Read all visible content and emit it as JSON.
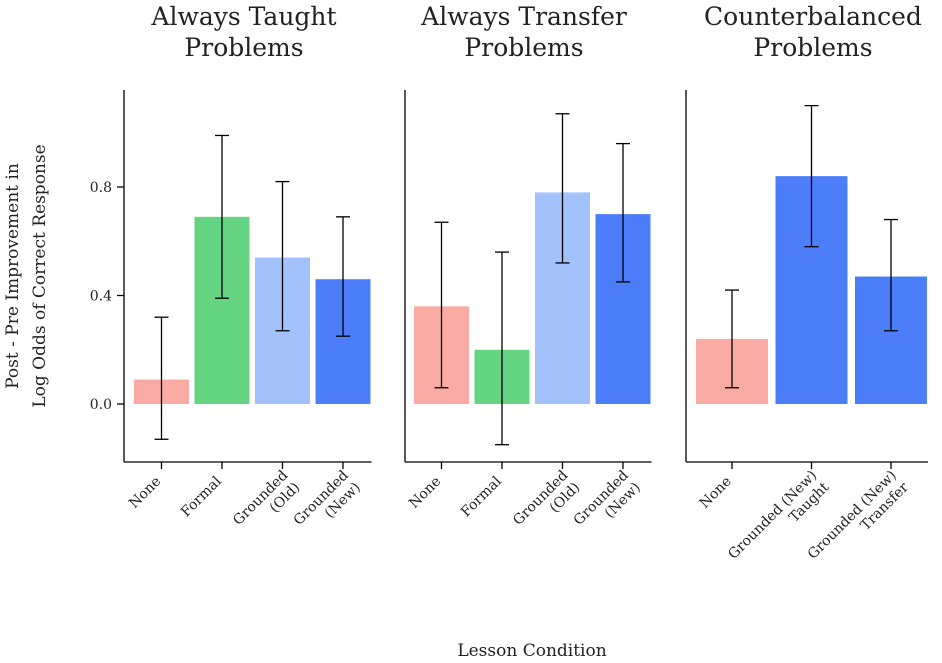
{
  "chart_data": {
    "type": "bar",
    "ylabel": [
      "Post - Pre Improvement in",
      "Log Odds of Correct Response"
    ],
    "xlabel": "Lesson Condition",
    "ylim": [
      -0.22,
      1.15
    ],
    "yticks": [
      0.0,
      0.4,
      0.8
    ],
    "ytick_labels": [
      "0.0",
      "0.4",
      "0.8"
    ],
    "colors": {
      "none": "#f8aaa3",
      "formal": "#65d584",
      "grounded_old": "#a3c2fb",
      "grounded_new": "#4b7ef8"
    },
    "panels": [
      {
        "title": [
          "Always Taught",
          "Problems"
        ],
        "bars": [
          {
            "label": [
              "None"
            ],
            "value": 0.09,
            "ci": [
              -0.13,
              0.32
            ],
            "color": "#f8aaa3"
          },
          {
            "label": [
              "Formal"
            ],
            "value": 0.69,
            "ci": [
              0.39,
              0.99
            ],
            "color": "#65d584"
          },
          {
            "label": [
              "Grounded",
              "(Old)"
            ],
            "value": 0.54,
            "ci": [
              0.27,
              0.82
            ],
            "color": "#a3c2fb"
          },
          {
            "label": [
              "Grounded",
              "(New)"
            ],
            "value": 0.46,
            "ci": [
              0.25,
              0.69
            ],
            "color": "#4b7ef8"
          }
        ]
      },
      {
        "title": [
          "Always Transfer",
          "Problems"
        ],
        "bars": [
          {
            "label": [
              "None"
            ],
            "value": 0.36,
            "ci": [
              0.06,
              0.67
            ],
            "color": "#f8aaa3"
          },
          {
            "label": [
              "Formal"
            ],
            "value": 0.2,
            "ci": [
              -0.15,
              0.56
            ],
            "color": "#65d584"
          },
          {
            "label": [
              "Grounded",
              "(Old)"
            ],
            "value": 0.78,
            "ci": [
              0.52,
              1.07
            ],
            "color": "#a3c2fb"
          },
          {
            "label": [
              "Grounded",
              "(New)"
            ],
            "value": 0.7,
            "ci": [
              0.45,
              0.96
            ],
            "color": "#4b7ef8"
          }
        ]
      },
      {
        "title": [
          "Counterbalanced",
          "Problems"
        ],
        "bars": [
          {
            "label": [
              "None"
            ],
            "value": 0.24,
            "ci": [
              0.06,
              0.42
            ],
            "color": "#f8aaa3"
          },
          {
            "label": [
              "Grounded (New)",
              "Taught"
            ],
            "value": 0.84,
            "ci": [
              0.58,
              1.1
            ],
            "color": "#4b7ef8"
          },
          {
            "label": [
              "Grounded (New)",
              "Transfer"
            ],
            "value": 0.47,
            "ci": [
              0.27,
              0.68
            ],
            "color": "#4b7ef8"
          }
        ]
      }
    ]
  }
}
